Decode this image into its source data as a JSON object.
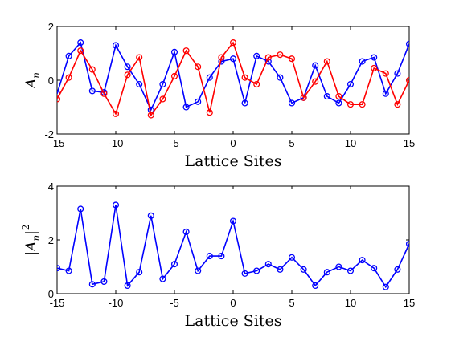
{
  "chart_data": [
    {
      "type": "line",
      "xlabel": "Lattice Sites",
      "ylabel": "A_n",
      "ylabel_main": "A",
      "ylabel_sub": "n",
      "xlim": [
        -15,
        15
      ],
      "ylim": [
        -2,
        2
      ],
      "xticks": [
        "-15",
        "-10",
        "-5",
        "0",
        "5",
        "10",
        "15"
      ],
      "yticks": [
        "-2",
        "0",
        "2"
      ],
      "xtick_values": [
        -15,
        -10,
        -5,
        0,
        5,
        10,
        15
      ],
      "ytick_values": [
        -2,
        0,
        2
      ],
      "grid": false,
      "legend": "none",
      "series": [
        {
          "color": "#0000ff",
          "marker": "circle",
          "x": [
            -15,
            -14,
            -13,
            -12,
            -11,
            -10,
            -9,
            -8,
            -7,
            -6,
            -5,
            -4,
            -3,
            -2,
            -1,
            0,
            1,
            2,
            3,
            4,
            5,
            6,
            7,
            8,
            9,
            10,
            11,
            12,
            13,
            14,
            15
          ],
          "values": [
            -0.5,
            0.9,
            1.4,
            -0.4,
            -0.45,
            1.3,
            0.5,
            -0.15,
            -1.1,
            -0.15,
            1.05,
            -1.0,
            -0.8,
            0.1,
            0.7,
            0.8,
            -0.85,
            0.9,
            0.7,
            0.1,
            -0.85,
            -0.65,
            0.55,
            -0.6,
            -0.85,
            -0.15,
            0.7,
            0.85,
            -0.5,
            0.25,
            1.35
          ]
        },
        {
          "color": "#ff0000",
          "marker": "circle",
          "x": [
            -15,
            -14,
            -13,
            -12,
            -11,
            -10,
            -9,
            -8,
            -7,
            -6,
            -5,
            -4,
            -3,
            -2,
            -1,
            0,
            1,
            2,
            3,
            4,
            5,
            6,
            7,
            8,
            9,
            10,
            11,
            12,
            13,
            14,
            15
          ],
          "values": [
            -0.7,
            0.1,
            1.1,
            0.4,
            -0.5,
            -1.25,
            0.2,
            0.85,
            -1.3,
            -0.7,
            0.15,
            1.1,
            0.5,
            -1.2,
            0.85,
            1.4,
            0.1,
            -0.15,
            0.85,
            0.95,
            0.8,
            -0.65,
            -0.05,
            0.7,
            -0.6,
            -0.9,
            -0.9,
            0.45,
            0.25,
            -0.9,
            0.0
          ]
        }
      ]
    },
    {
      "type": "line",
      "xlabel": "Lattice Sites",
      "ylabel": "|A_n|^2",
      "ylabel_main": "A",
      "ylabel_sub": "n",
      "ylabel_sup": "2",
      "xlim": [
        -15,
        15
      ],
      "ylim": [
        0,
        4
      ],
      "xticks": [
        "-15",
        "-10",
        "-5",
        "0",
        "5",
        "10",
        "15"
      ],
      "yticks": [
        "0",
        "2",
        "4"
      ],
      "xtick_values": [
        -15,
        -10,
        -5,
        0,
        5,
        10,
        15
      ],
      "ytick_values": [
        0,
        2,
        4
      ],
      "grid": false,
      "legend": "none",
      "series": [
        {
          "color": "#0000ff",
          "marker": "circle",
          "x": [
            -15,
            -14,
            -13,
            -12,
            -11,
            -10,
            -9,
            -8,
            -7,
            -6,
            -5,
            -4,
            -3,
            -2,
            -1,
            0,
            1,
            2,
            3,
            4,
            5,
            6,
            7,
            8,
            9,
            10,
            11,
            12,
            13,
            14,
            15
          ],
          "values": [
            0.95,
            0.85,
            3.15,
            0.35,
            0.45,
            3.3,
            0.3,
            0.8,
            2.9,
            0.55,
            1.1,
            2.3,
            0.85,
            1.4,
            1.4,
            2.7,
            0.75,
            0.85,
            1.1,
            0.9,
            1.35,
            0.9,
            0.3,
            0.8,
            1.0,
            0.85,
            1.25,
            0.95,
            0.25,
            0.9,
            1.85
          ]
        }
      ]
    }
  ]
}
